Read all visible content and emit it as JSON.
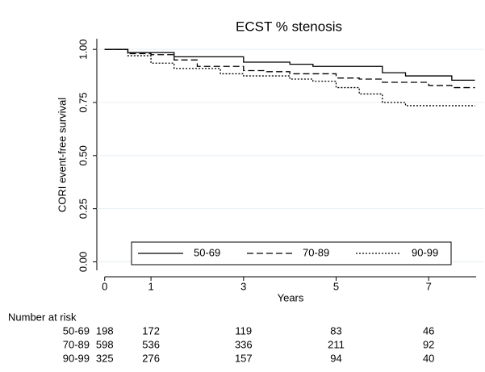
{
  "chart_data": {
    "type": "step",
    "title": "ECST % stenosis",
    "xlabel": "Years",
    "ylabel": "CORI event-free survival",
    "xlim": [
      -0.17,
      8.2
    ],
    "ylim": [
      -0.04,
      1.05
    ],
    "xticks": [
      0,
      1,
      3,
      5,
      7
    ],
    "yticks": [
      {
        "value": 0,
        "label": "0.00"
      },
      {
        "value": 0.25,
        "label": "0.25"
      },
      {
        "value": 0.5,
        "label": "0.50"
      },
      {
        "value": 0.75,
        "label": "0.75"
      },
      {
        "value": 1,
        "label": "1.00"
      }
    ],
    "grid": true,
    "legend_position": "bottom",
    "series": [
      {
        "name": "50-69",
        "color": "#000000",
        "dash": "solid",
        "x": [
          0,
          0.5,
          1.5,
          3,
          4,
          4.5,
          6,
          6.5,
          7.5,
          8
        ],
        "values": [
          1,
          0.985,
          0.965,
          0.94,
          0.93,
          0.92,
          0.89,
          0.875,
          0.855,
          0.855
        ]
      },
      {
        "name": "70-89",
        "color": "#000000",
        "dash": "dashed",
        "x": [
          0,
          0.5,
          1,
          1.5,
          2,
          3,
          3.5,
          4,
          5,
          5.5,
          6,
          7,
          7.5,
          8
        ],
        "values": [
          1,
          0.98,
          0.975,
          0.95,
          0.92,
          0.9,
          0.895,
          0.885,
          0.865,
          0.86,
          0.845,
          0.83,
          0.82,
          0.82
        ]
      },
      {
        "name": "90-99",
        "color": "#000000",
        "dash": "dotted",
        "x": [
          0,
          0.5,
          1,
          1.5,
          2.5,
          3,
          4,
          4.5,
          5,
          5.5,
          6,
          6.5,
          8
        ],
        "values": [
          1,
          0.97,
          0.935,
          0.91,
          0.885,
          0.875,
          0.86,
          0.85,
          0.82,
          0.79,
          0.75,
          0.735,
          0.735
        ]
      }
    ],
    "risk_table": {
      "title": "Number at risk",
      "rows": [
        {
          "name": "50-69",
          "values": [
            198,
            172,
            119,
            83,
            46
          ]
        },
        {
          "name": "70-89",
          "values": [
            598,
            536,
            336,
            211,
            92
          ]
        },
        {
          "name": "90-99",
          "values": [
            325,
            276,
            157,
            94,
            40
          ]
        }
      ]
    }
  }
}
